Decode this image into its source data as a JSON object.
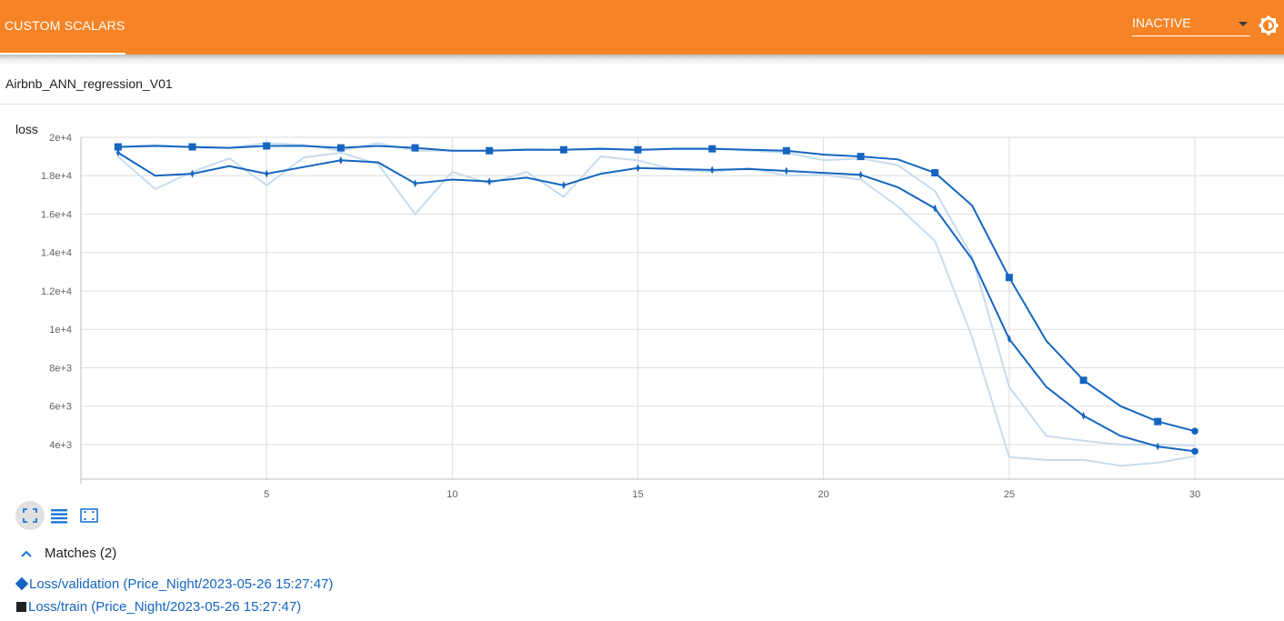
{
  "header": {
    "tab_label": "CUSTOM SCALARS",
    "run_select": "INACTIVE",
    "theme_icon": "brightness-icon"
  },
  "group_title": "Airbnb_ANN_regression_V01",
  "colors": {
    "header": "#f68426",
    "line": "#1565c0",
    "raw_line": "#c6dcee",
    "grid": "#dddddd"
  },
  "toolbar": {
    "icons": [
      "fit-to-data-icon",
      "legend-list-icon",
      "zoom-selection-icon"
    ]
  },
  "matches": {
    "label": "Matches (2)",
    "items": [
      {
        "label": "Loss/validation (Price_Night/2023-05-26 15:27:47)",
        "marker": "diamond"
      },
      {
        "label": "Loss/train (Price_Night/2023-05-26 15:27:47)",
        "marker": "square"
      }
    ]
  },
  "chart_data": {
    "type": "line",
    "title": "loss",
    "xlabel": "",
    "ylabel": "",
    "xlim": [
      0,
      32.4
    ],
    "ylim": [
      2200,
      20000
    ],
    "x_ticks": [
      5,
      10,
      15,
      20,
      25,
      30
    ],
    "y_ticks": [
      4000,
      6000,
      8000,
      10000,
      12000,
      14000,
      16000,
      18000,
      20000
    ],
    "y_tick_labels": [
      "4e+3",
      "6e+3",
      "8e+3",
      "1e+4",
      "1.2e+4",
      "1.4e+4",
      "1.6e+4",
      "1.8e+4",
      "2e+4"
    ],
    "grid": true,
    "x": [
      1,
      2,
      3,
      4,
      5,
      6,
      7,
      8,
      9,
      10,
      11,
      12,
      13,
      14,
      15,
      16,
      17,
      18,
      19,
      20,
      21,
      22,
      23,
      24,
      25,
      26,
      27,
      28,
      29,
      30
    ],
    "series": [
      {
        "marker": "square",
        "smoothed": [
          19500,
          19550,
          19500,
          19450,
          19550,
          19550,
          19450,
          19550,
          19450,
          19300,
          19300,
          19350,
          19350,
          19400,
          19350,
          19400,
          19400,
          19350,
          19300,
          19100,
          19000,
          18850,
          18150,
          16450,
          12700,
          9400,
          7350,
          6000,
          5200,
          4700
        ],
        "raw": [
          19500,
          19600,
          19450,
          19450,
          19700,
          19600,
          19300,
          19700,
          19300,
          19300,
          19300,
          19400,
          19350,
          19450,
          19300,
          19450,
          19450,
          19300,
          19200,
          18800,
          18900,
          18550,
          17200,
          13800,
          7000,
          4450,
          4200,
          4000,
          4000,
          3950
        ]
      },
      {
        "marker": "diamond",
        "smoothed": [
          19200,
          18000,
          18100,
          18500,
          18100,
          18450,
          18800,
          18700,
          17600,
          17800,
          17700,
          17900,
          17500,
          18100,
          18400,
          18350,
          18300,
          18350,
          18250,
          18150,
          18050,
          17400,
          16300,
          13650,
          9500,
          7000,
          5500,
          4450,
          3900,
          3650
        ],
        "raw": [
          19000,
          17300,
          18200,
          18900,
          17500,
          18950,
          19200,
          18600,
          16000,
          18200,
          17600,
          18200,
          16900,
          19000,
          18800,
          18300,
          18200,
          18400,
          18000,
          18050,
          17800,
          16400,
          14600,
          9600,
          3350,
          3200,
          3200,
          2900,
          3050,
          3400
        ]
      }
    ]
  }
}
